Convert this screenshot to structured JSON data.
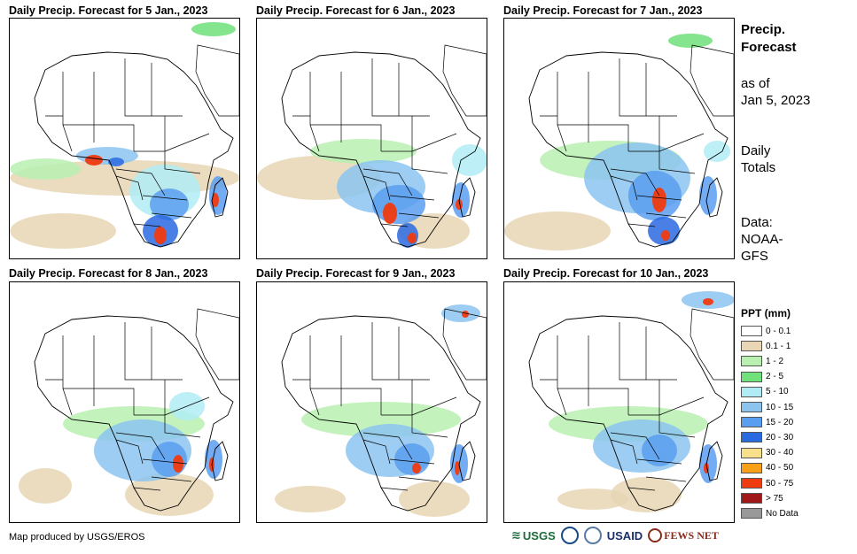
{
  "panels": [
    {
      "title": "Daily Precip. Forecast for 5 Jan., 2023"
    },
    {
      "title": "Daily Precip. Forecast for 6 Jan., 2023"
    },
    {
      "title": "Daily Precip. Forecast for 7 Jan., 2023"
    },
    {
      "title": "Daily Precip. Forecast for 8 Jan., 2023"
    },
    {
      "title": "Daily Precip. Forecast for 9 Jan., 2023"
    },
    {
      "title": "Daily Precip. Forecast for 10 Jan., 2023"
    }
  ],
  "side": {
    "title_line1": "Precip.",
    "title_line2": "Forecast",
    "asof_line1": "as of",
    "asof_line2": "Jan 5, 2023",
    "totals_line1": "Daily",
    "totals_line2": "Totals",
    "data_line1": "Data:",
    "data_line2": "NOAA-",
    "data_line3": "GFS"
  },
  "legend": {
    "title": "PPT (mm)",
    "items": [
      {
        "label": "0 - 0.1",
        "color": "#ffffff"
      },
      {
        "label": "0.1 - 1",
        "color": "#e8d6b4"
      },
      {
        "label": "1 - 2",
        "color": "#b8f0b0"
      },
      {
        "label": "2 - 5",
        "color": "#6fe07a"
      },
      {
        "label": "5 - 10",
        "color": "#b0ecf4"
      },
      {
        "label": "10 - 15",
        "color": "#8cc4f0"
      },
      {
        "label": "15 - 20",
        "color": "#5a9ef0"
      },
      {
        "label": "20 - 30",
        "color": "#2a6ae0"
      },
      {
        "label": "30 - 40",
        "color": "#f8e08a"
      },
      {
        "label": "40 - 50",
        "color": "#f8a018"
      },
      {
        "label": "50 - 75",
        "color": "#f03a10"
      },
      {
        "label": "> 75",
        "color": "#a01818"
      },
      {
        "label": "No Data",
        "color": "#999999"
      }
    ]
  },
  "credit": "Map produced by USGS/EROS",
  "logos": {
    "usgs": "USGS",
    "usaid": "USAID",
    "fews": "FEWS NET"
  }
}
